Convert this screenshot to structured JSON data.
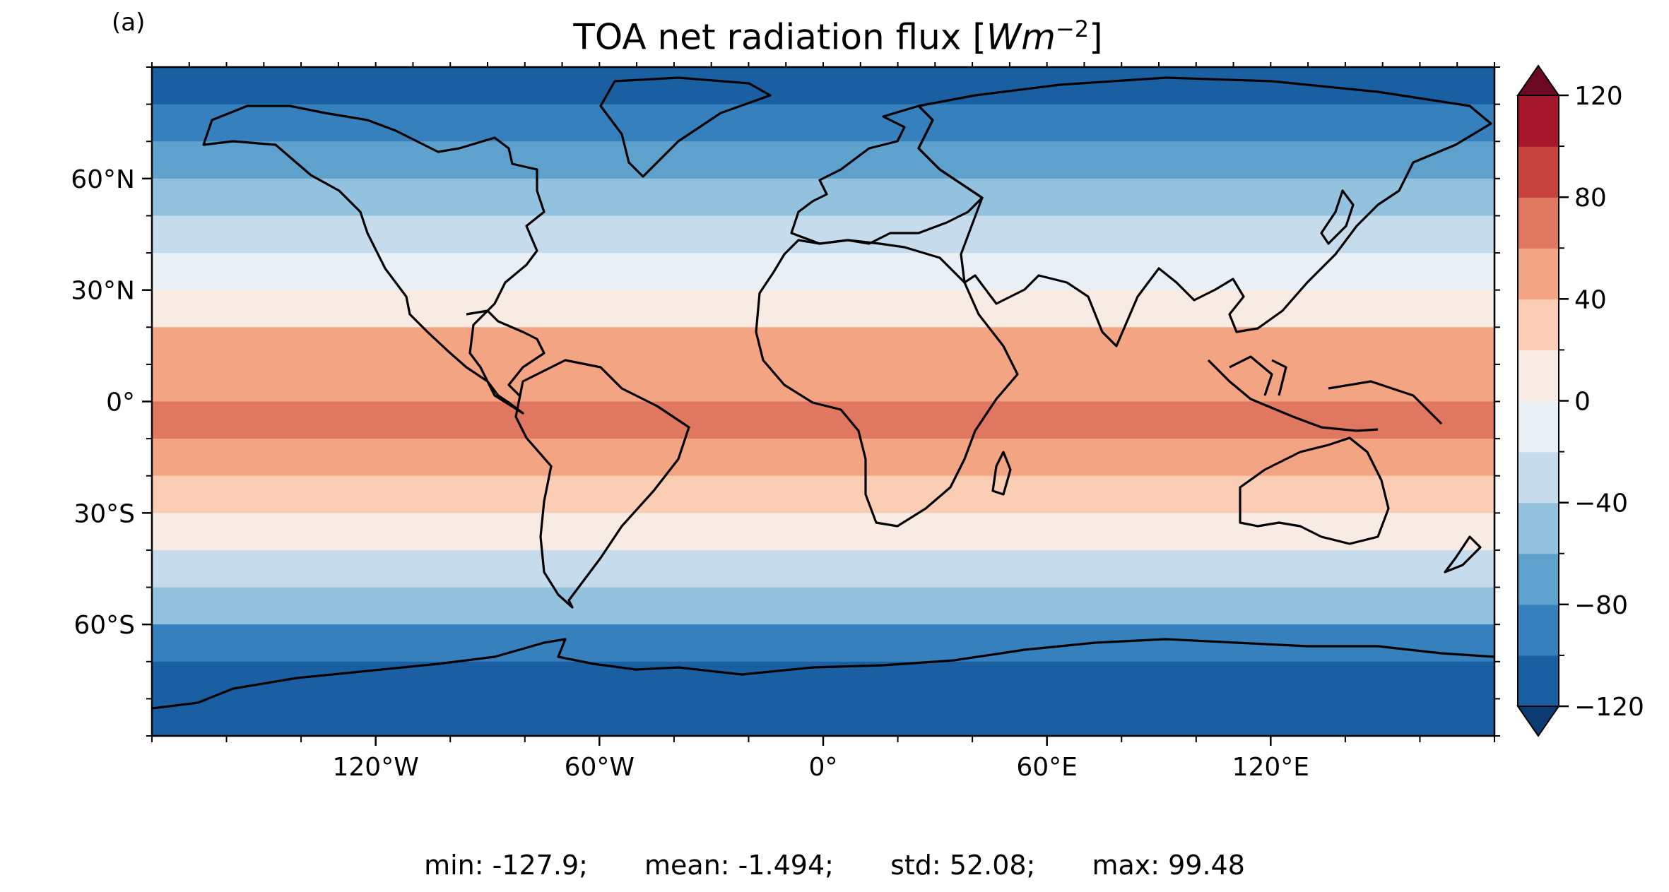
{
  "panel_label": "(a)",
  "title": {
    "text": "TOA net radiation flux [",
    "unit_main": "Wm",
    "unit_exp": "−2",
    "close": "]"
  },
  "chart_data": {
    "type": "heatmap",
    "title": "TOA net radiation flux [Wm^-2]",
    "projection": "equirectangular",
    "x_range": [
      -180,
      180
    ],
    "y_range": [
      -90,
      90
    ],
    "x_ticks": [
      {
        "value": -120,
        "label": "120°W"
      },
      {
        "value": -60,
        "label": "60°W"
      },
      {
        "value": 0,
        "label": "0°"
      },
      {
        "value": 60,
        "label": "60°E"
      },
      {
        "value": 120,
        "label": "120°E"
      }
    ],
    "y_ticks": [
      {
        "value": 60,
        "label": "60°N"
      },
      {
        "value": 30,
        "label": "30°N"
      },
      {
        "value": 0,
        "label": "0°"
      },
      {
        "value": -30,
        "label": "30°S"
      },
      {
        "value": -60,
        "label": "60°S"
      }
    ],
    "colorbar": {
      "cmap": "RdBu_r",
      "extend": "both",
      "min": -120,
      "max": 120,
      "step": 20,
      "tick_values": [
        -120,
        -80,
        -40,
        0,
        40,
        80,
        120
      ],
      "tick_labels": [
        "−120",
        "−80",
        "−40",
        "0",
        "40",
        "80",
        "120"
      ],
      "colors": [
        "#0b3b70",
        "#1b5fa3",
        "#3580bd",
        "#5ea1cd",
        "#93c2df",
        "#c6dcec",
        "#e8f0f5",
        "#f8ebe3",
        "#fbcdb4",
        "#f3a482",
        "#e07760",
        "#c6433d",
        "#a5172b",
        "#6b0a21"
      ]
    },
    "zonal_profile": [
      {
        "lat": 85,
        "value": -120
      },
      {
        "lat": 75,
        "value": -100
      },
      {
        "lat": 65,
        "value": -80
      },
      {
        "lat": 55,
        "value": -60
      },
      {
        "lat": 45,
        "value": -40
      },
      {
        "lat": 35,
        "value": -10
      },
      {
        "lat": 25,
        "value": 15
      },
      {
        "lat": 15,
        "value": 45
      },
      {
        "lat": 5,
        "value": 55
      },
      {
        "lat": -5,
        "value": 60
      },
      {
        "lat": -15,
        "value": 45
      },
      {
        "lat": -25,
        "value": 25
      },
      {
        "lat": -35,
        "value": 5
      },
      {
        "lat": -45,
        "value": -25
      },
      {
        "lat": -55,
        "value": -60
      },
      {
        "lat": -65,
        "value": -90
      },
      {
        "lat": -75,
        "value": -105
      },
      {
        "lat": -85,
        "value": -110
      }
    ],
    "stats": {
      "min": -127.9,
      "mean": -1.494,
      "std": 52.08,
      "max": 99.48
    }
  },
  "stats_text": {
    "min": "min: -127.9;",
    "mean": "mean: -1.494;",
    "std": "std: 52.08;",
    "max": "max: 99.48"
  }
}
